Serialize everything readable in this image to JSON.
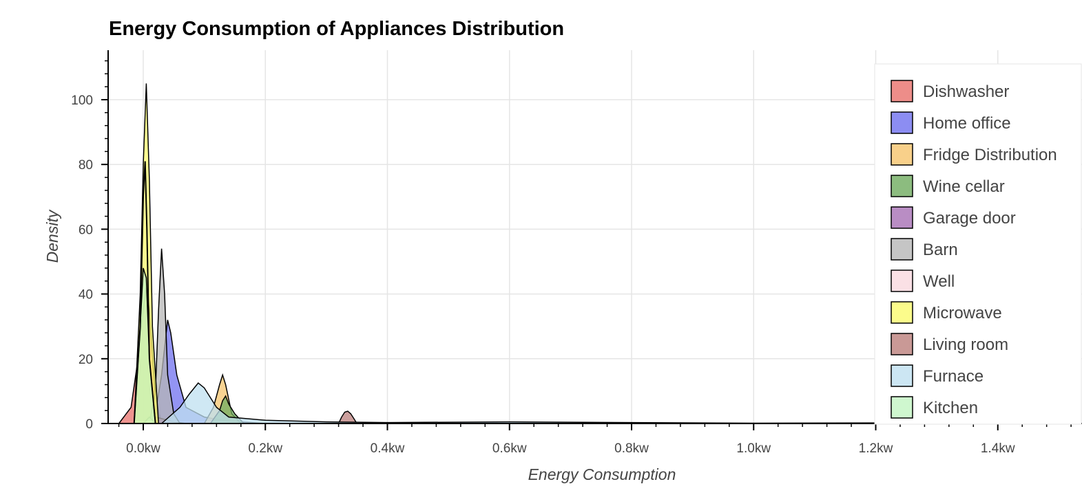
{
  "chart_data": {
    "type": "area",
    "title": "Energy Consumption of Appliances Distribution",
    "xlabel": "Energy Consumption",
    "ylabel": "Density",
    "xlim": [
      -0.05,
      1.6
    ],
    "ylim": [
      0,
      115
    ],
    "x_ticks": [
      {
        "value": 0.0,
        "label": "0.0kw"
      },
      {
        "value": 0.2,
        "label": "0.2kw"
      },
      {
        "value": 0.4,
        "label": "0.4kw"
      },
      {
        "value": 0.6,
        "label": "0.6kw"
      },
      {
        "value": 0.8,
        "label": "0.8kw"
      },
      {
        "value": 1.0,
        "label": "1.0kw"
      },
      {
        "value": 1.2,
        "label": "1.2kw"
      },
      {
        "value": 1.4,
        "label": "1.4kw"
      }
    ],
    "y_ticks": [
      {
        "value": 0,
        "label": "0"
      },
      {
        "value": 20,
        "label": "20"
      },
      {
        "value": 40,
        "label": "40"
      },
      {
        "value": 60,
        "label": "60"
      },
      {
        "value": 80,
        "label": "80"
      },
      {
        "value": 100,
        "label": "100"
      }
    ],
    "grid": true,
    "legend_position": "right",
    "series": [
      {
        "name": "Dishwasher",
        "color": "#e8706b",
        "x": [
          -0.04,
          -0.02,
          -0.01,
          0.0,
          0.005,
          0.01,
          0.02,
          0.03
        ],
        "y": [
          0,
          5,
          18,
          35,
          42,
          35,
          8,
          0
        ]
      },
      {
        "name": "Home office",
        "color": "#6f70ef",
        "x": [
          0.0,
          0.02,
          0.03,
          0.04,
          0.045,
          0.055,
          0.07,
          0.1,
          0.13,
          0.16,
          0.2
        ],
        "y": [
          0,
          3,
          15,
          32,
          28,
          15,
          5,
          2,
          1,
          0.5,
          0
        ]
      },
      {
        "name": "Fridge Distribution",
        "color": "#f6c46d",
        "x": [
          0.1,
          0.115,
          0.125,
          0.13,
          0.135,
          0.145,
          0.16
        ],
        "y": [
          0,
          5,
          12,
          15,
          12,
          3,
          0
        ]
      },
      {
        "name": "Wine cellar",
        "color": "#6fab5f",
        "x": [
          0.11,
          0.125,
          0.13,
          0.135,
          0.14,
          0.15,
          0.165
        ],
        "y": [
          0,
          4,
          7,
          8.5,
          6,
          3,
          0
        ]
      },
      {
        "name": "Garage door",
        "color": "#a771b5",
        "x": [
          0.0,
          0.01,
          0.02,
          0.03,
          0.04,
          0.05,
          0.07
        ],
        "y": [
          0,
          1,
          2,
          1.5,
          1,
          0.5,
          0
        ]
      },
      {
        "name": "Barn",
        "color": "#b6b6b6",
        "x": [
          0.01,
          0.02,
          0.025,
          0.03,
          0.035,
          0.04,
          0.05,
          0.06
        ],
        "y": [
          0,
          10,
          35,
          54,
          40,
          15,
          3,
          0
        ]
      },
      {
        "name": "Well",
        "color": "#f9d8de",
        "x": [
          0.0,
          0.005,
          0.01,
          0.015,
          0.02
        ],
        "y": [
          0,
          1,
          2,
          1,
          0
        ]
      },
      {
        "name": "Microwave",
        "color": "#fbfb6e",
        "x": [
          -0.015,
          -0.005,
          0.0,
          0.005,
          0.01,
          0.015,
          0.025
        ],
        "y": [
          0,
          40,
          80,
          105,
          75,
          30,
          0
        ]
      },
      {
        "name": "Living room",
        "color": "#bb7f7c",
        "x": [
          0.32,
          0.325,
          0.33,
          0.335,
          0.34,
          0.345,
          0.35
        ],
        "y": [
          0,
          2,
          3.5,
          3.8,
          3,
          1.5,
          0
        ]
      },
      {
        "name": "Furnace",
        "color": "#bfe0f0",
        "x": [
          0.03,
          0.06,
          0.075,
          0.09,
          0.1,
          0.12,
          0.14,
          0.2,
          0.3,
          0.4,
          0.6,
          0.8,
          1.0,
          1.2,
          1.4,
          1.58
        ],
        "y": [
          0,
          5,
          9,
          12.5,
          11,
          5,
          2,
          1,
          0.5,
          0.3,
          0.5,
          0.3,
          0.1,
          0.2,
          0.05,
          0
        ]
      },
      {
        "name": "Kitchen",
        "color": "#c3f5c3",
        "x": [
          -0.015,
          -0.005,
          0.0,
          0.005,
          0.01,
          0.02
        ],
        "y": [
          0,
          30,
          48,
          45,
          20,
          0
        ]
      }
    ],
    "black_outline_peaks": [
      {
        "x": [
          -0.015,
          -0.005,
          0.0,
          0.003,
          0.006,
          0.01,
          0.02
        ],
        "y": [
          0,
          30,
          70,
          81,
          60,
          20,
          0
        ]
      }
    ]
  }
}
